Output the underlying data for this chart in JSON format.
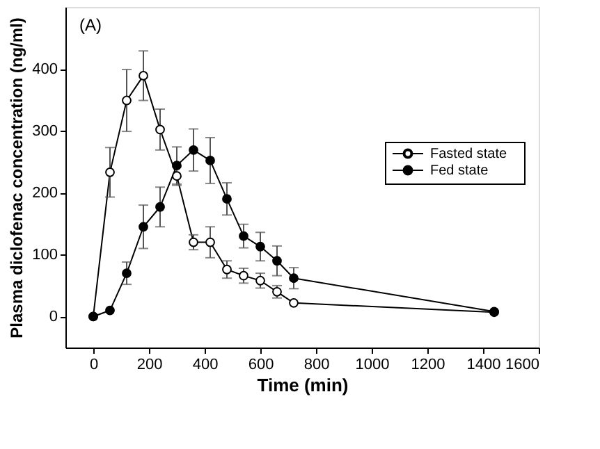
{
  "chart_data": {
    "type": "line",
    "xlabel": "Time (min)",
    "ylabel": "Plasma diclofenac concentration (ng/ml)",
    "annotations": [
      "(A)"
    ],
    "x": [
      0,
      60,
      120,
      180,
      240,
      300,
      360,
      420,
      480,
      540,
      600,
      660,
      720,
      1440
    ],
    "series": [
      {
        "name": "Fasted state",
        "color": "#ffffff",
        "values": [
          0,
          233,
          349,
          389,
          302,
          227,
          120,
          120,
          76,
          66,
          58,
          40,
          22,
          7
        ],
        "errors": [
          null,
          40,
          50,
          40,
          33,
          15,
          12,
          25,
          14,
          12,
          12,
          10,
          null,
          null
        ]
      },
      {
        "name": "Fed state",
        "color": "#000000",
        "values": [
          0,
          10,
          70,
          145,
          177,
          244,
          269,
          252,
          190,
          130,
          113,
          90,
          62,
          8
        ],
        "errors": [
          null,
          null,
          18,
          35,
          32,
          30,
          34,
          37,
          26,
          19,
          23,
          24,
          17,
          null
        ]
      }
    ],
    "xlim": [
      -100,
      1600
    ],
    "xticks": [
      0,
      200,
      400,
      600,
      800,
      1000,
      1200,
      1400,
      1600
    ],
    "ylim": [
      -50,
      500
    ],
    "yticks": [
      0,
      100,
      200,
      300,
      400
    ],
    "grid": false,
    "legend": "right",
    "marker": "circle",
    "line_style": "solid"
  }
}
